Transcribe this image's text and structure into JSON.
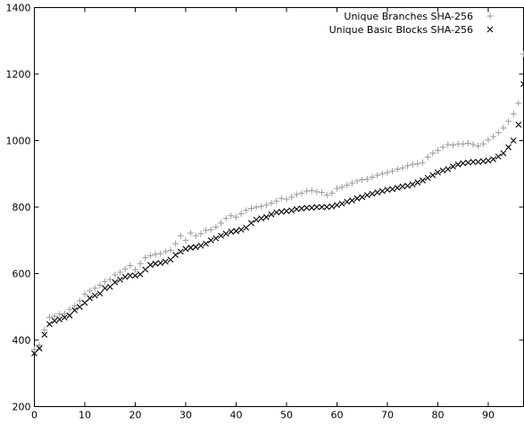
{
  "chart_data": {
    "type": "scatter",
    "title": "",
    "xlabel": "",
    "ylabel": "",
    "xlim": [
      0,
      97
    ],
    "ylim": [
      200,
      1400
    ],
    "x_ticks": [
      0,
      10,
      20,
      30,
      40,
      50,
      60,
      70,
      80,
      90
    ],
    "y_ticks": [
      200,
      400,
      600,
      800,
      1000,
      1200,
      1400
    ],
    "x_tick_labels": [
      "0",
      "10",
      "20",
      "30",
      "40",
      "50",
      "60",
      "70",
      "80",
      "90"
    ],
    "y_tick_labels": [
      "200",
      "400",
      "600",
      "800",
      "1000",
      "1200",
      "1400"
    ],
    "grid": false,
    "legend_position": "top-right",
    "series": [
      {
        "name": "Unique Branches SHA-256",
        "marker": "plus",
        "color": "#999999",
        "x": [
          0,
          1,
          2,
          3,
          4,
          5,
          6,
          7,
          8,
          9,
          10,
          11,
          12,
          13,
          14,
          15,
          16,
          17,
          18,
          19,
          20,
          21,
          22,
          23,
          24,
          25,
          26,
          27,
          28,
          29,
          30,
          31,
          32,
          33,
          34,
          35,
          36,
          37,
          38,
          39,
          40,
          41,
          42,
          43,
          44,
          45,
          46,
          47,
          48,
          49,
          50,
          51,
          52,
          53,
          54,
          55,
          56,
          57,
          58,
          59,
          60,
          61,
          62,
          63,
          64,
          65,
          66,
          67,
          68,
          69,
          70,
          71,
          72,
          73,
          74,
          75,
          76,
          77,
          78,
          79,
          80,
          81,
          82,
          83,
          84,
          85,
          86,
          87,
          88,
          89,
          90,
          91,
          92,
          93,
          94,
          95,
          96,
          97
        ],
        "y": [
          372,
          385,
          430,
          468,
          472,
          478,
          480,
          492,
          503,
          518,
          538,
          548,
          556,
          565,
          576,
          582,
          596,
          604,
          614,
          624,
          612,
          630,
          648,
          654,
          658,
          660,
          666,
          670,
          690,
          714,
          700,
          722,
          714,
          720,
          730,
          732,
          740,
          752,
          766,
          774,
          770,
          780,
          790,
          796,
          800,
          802,
          806,
          812,
          818,
          826,
          824,
          830,
          838,
          842,
          848,
          850,
          846,
          844,
          836,
          842,
          856,
          860,
          866,
          872,
          878,
          882,
          884,
          890,
          896,
          900,
          904,
          908,
          914,
          918,
          924,
          928,
          930,
          934,
          950,
          962,
          970,
          980,
          988,
          986,
          990,
          990,
          992,
          988,
          984,
          990,
          1002,
          1012,
          1024,
          1038,
          1058,
          1080,
          1112,
          1260
        ]
      },
      {
        "name": "Unique Basic Blocks SHA-256",
        "marker": "x",
        "color": "#000000",
        "x": [
          0,
          1,
          2,
          3,
          4,
          5,
          6,
          7,
          8,
          9,
          10,
          11,
          12,
          13,
          14,
          15,
          16,
          17,
          18,
          19,
          20,
          21,
          22,
          23,
          24,
          25,
          26,
          27,
          28,
          29,
          30,
          31,
          32,
          33,
          34,
          35,
          36,
          37,
          38,
          39,
          40,
          41,
          42,
          43,
          44,
          45,
          46,
          47,
          48,
          49,
          50,
          51,
          52,
          53,
          54,
          55,
          56,
          57,
          58,
          59,
          60,
          61,
          62,
          63,
          64,
          65,
          66,
          67,
          68,
          69,
          70,
          71,
          72,
          73,
          74,
          75,
          76,
          77,
          78,
          79,
          80,
          81,
          82,
          83,
          84,
          85,
          86,
          87,
          88,
          89,
          90,
          91,
          92,
          93,
          94,
          95,
          96,
          97
        ],
        "y": [
          360,
          375,
          416,
          448,
          458,
          462,
          468,
          474,
          490,
          500,
          512,
          526,
          534,
          540,
          556,
          560,
          574,
          582,
          590,
          594,
          594,
          598,
          612,
          626,
          630,
          632,
          636,
          642,
          656,
          666,
          674,
          678,
          680,
          684,
          690,
          700,
          706,
          714,
          720,
          726,
          728,
          732,
          738,
          752,
          762,
          766,
          770,
          778,
          784,
          786,
          788,
          790,
          794,
          796,
          798,
          798,
          800,
          800,
          800,
          802,
          806,
          810,
          816,
          820,
          826,
          830,
          836,
          840,
          844,
          848,
          852,
          854,
          858,
          862,
          864,
          868,
          874,
          880,
          888,
          896,
          904,
          910,
          914,
          922,
          928,
          932,
          934,
          936,
          936,
          938,
          940,
          944,
          952,
          962,
          980,
          1000,
          1048,
          1170
        ]
      }
    ]
  }
}
